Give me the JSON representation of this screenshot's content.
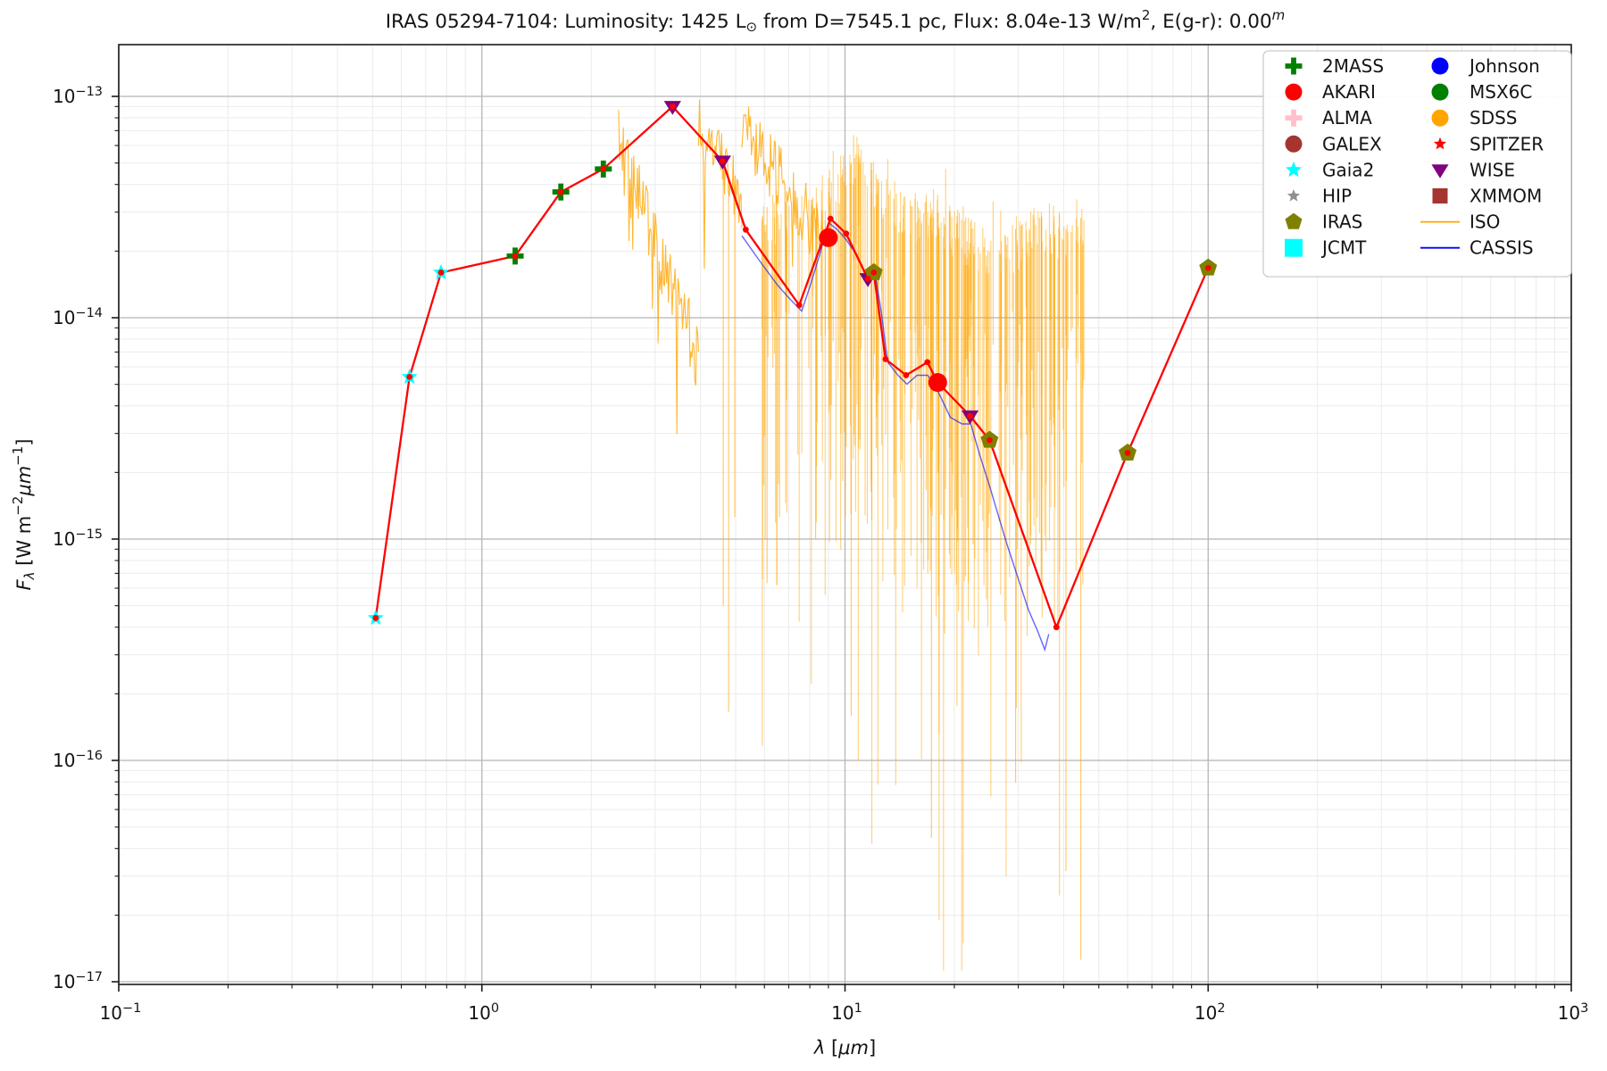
{
  "figure": {
    "title_plain": "IRAS 05294-7104:  Luminosity: 1425 L⊙ from D=7545.1 pc, Flux: 8.04e-13 W/m2, E(g-r): 0.00m",
    "title_parts": [
      {
        "t": "IRAS 05294-7104:  Luminosity: 1425 L",
        "s": "n"
      },
      {
        "t": "⊙",
        "s": "sub"
      },
      {
        "t": " from D=7545.1 pc, Flux: 8.04e-13 W/m",
        "s": "n"
      },
      {
        "t": "2",
        "s": "sup"
      },
      {
        "t": ", E(g-r): 0.00",
        "s": "n"
      },
      {
        "t": "m",
        "s": "supi"
      }
    ],
    "xlabel_parts": [
      {
        "t": "λ",
        "s": "i"
      },
      {
        "t": " [",
        "s": "n"
      },
      {
        "t": "μm",
        "s": "i"
      },
      {
        "t": "]",
        "s": "n"
      }
    ],
    "ylabel_parts": [
      {
        "t": "F",
        "s": "i"
      },
      {
        "t": "λ",
        "s": "subi"
      },
      {
        "t": " [W m",
        "s": "n"
      },
      {
        "t": "−2",
        "s": "sup"
      },
      {
        "t": "μm",
        "s": "i"
      },
      {
        "t": "−1",
        "s": "sup"
      },
      {
        "t": "]",
        "s": "n"
      }
    ],
    "x_tick_exponents": [
      "−1",
      "0",
      "1",
      "2",
      "3"
    ],
    "y_tick_exponents": [
      "−13",
      "−14",
      "−15",
      "−16",
      "−17"
    ],
    "tick_mantissa": "10"
  },
  "legend": {
    "columns": [
      [
        {
          "label": "2MASS",
          "marker": "plus",
          "color": "#008000"
        },
        {
          "label": "AKARI",
          "marker": "circle",
          "color": "#ff0000"
        },
        {
          "label": "ALMA",
          "marker": "plus",
          "color": "#ffc0cb"
        },
        {
          "label": "GALEX",
          "marker": "circle",
          "color": "#a5352f"
        },
        {
          "label": "Gaia2",
          "marker": "star",
          "color": "#00ffff"
        },
        {
          "label": "HIP",
          "marker": "star-small",
          "color": "#909090"
        },
        {
          "label": "IRAS",
          "marker": "pentagon",
          "color": "#808000"
        },
        {
          "label": "JCMT",
          "marker": "square-big",
          "color": "#00ffff"
        }
      ],
      [
        {
          "label": "Johnson",
          "marker": "circle",
          "color": "#0000ff"
        },
        {
          "label": "MSX6C",
          "marker": "circle",
          "color": "#008000"
        },
        {
          "label": "SDSS",
          "marker": "circle",
          "color": "#ffa500"
        },
        {
          "label": "SPITZER",
          "marker": "star-small",
          "color": "#ff0000"
        },
        {
          "label": "WISE",
          "marker": "triangle-down",
          "color": "#800080"
        },
        {
          "label": "XMMOM",
          "marker": "square",
          "color": "#a5352f"
        },
        {
          "label": "ISO",
          "marker": "line",
          "color": "#ffa500"
        },
        {
          "label": "CASSIS",
          "marker": "line",
          "color": "#0000ff"
        }
      ]
    ]
  },
  "colors": {
    "sed_line": "#ff0000",
    "iso": "#ffa500",
    "cassis": "#0000ff",
    "grid_major": "#b5b5b5",
    "grid_minor": "#ebebeb",
    "spine": "#1a1a1a",
    "text": "#141414",
    "legend_border": "#cccccc"
  },
  "chart_data": {
    "type": "scatter",
    "title": "IRAS 05294-7104:  Luminosity: 1425 L_sun from D=7545.1 pc, Flux: 8.04e-13 W/m^2, E(g-r): 0.00^m",
    "xlabel": "lambda [um]",
    "ylabel": "F_lambda [W m^-2 um^-1]",
    "xscale": "log",
    "yscale": "log",
    "xlim": [
      0.1,
      1000
    ],
    "ylim": [
      9.6e-18,
      1.7e-13
    ],
    "grid": true,
    "legend_position": "upper right",
    "series": [
      {
        "name": "SED combined (red line with vertex dots)",
        "type": "line+dots",
        "color": "#ff0000",
        "points_lambda_um_flux": [
          [
            0.51,
            4.4e-16
          ],
          [
            0.632,
            5.4e-15
          ],
          [
            0.772,
            1.6e-14
          ],
          [
            1.235,
            1.9e-14
          ],
          [
            1.65,
            3.7e-14
          ],
          [
            2.16,
            4.7e-14
          ],
          [
            3.35,
            9e-14
          ],
          [
            4.6,
            5.1e-14
          ],
          [
            5.33,
            2.5e-14
          ],
          [
            7.48,
            1.14e-14
          ],
          [
            9.12,
            2.8e-14
          ],
          [
            10.07,
            2.4e-14
          ],
          [
            11.56,
            1.5e-14
          ],
          [
            12.0,
            1.6e-14
          ],
          [
            12.93,
            6.5e-15
          ],
          [
            14.73,
            5.5e-15
          ],
          [
            16.86,
            6.3e-15
          ],
          [
            18.0,
            5.1e-15
          ],
          [
            22.1,
            3.6e-15
          ],
          [
            25.0,
            2.8e-15
          ],
          [
            38.2,
            4e-16
          ],
          [
            60.0,
            2.45e-15
          ],
          [
            100.0,
            1.68e-14
          ]
        ]
      },
      {
        "name": "Gaia2",
        "marker": "star",
        "color": "#00ffff",
        "points_lambda_um_flux": [
          [
            0.51,
            4.4e-16
          ],
          [
            0.632,
            5.4e-15
          ],
          [
            0.772,
            1.6e-14
          ]
        ]
      },
      {
        "name": "2MASS",
        "marker": "plus",
        "color": "#008000",
        "points_lambda_um_flux": [
          [
            1.235,
            1.9e-14
          ],
          [
            1.65,
            3.7e-14
          ],
          [
            2.16,
            4.7e-14
          ]
        ]
      },
      {
        "name": "WISE",
        "marker": "triangle-down",
        "color": "#800080",
        "points_lambda_um_flux": [
          [
            3.35,
            9e-14
          ],
          [
            4.6,
            5.1e-14
          ],
          [
            11.56,
            1.5e-14
          ],
          [
            22.1,
            3.6e-15
          ]
        ]
      },
      {
        "name": "AKARI",
        "marker": "circle",
        "color": "#ff0000",
        "points_lambda_um_flux": [
          [
            9.0,
            2.3e-14
          ],
          [
            18.0,
            5.1e-15
          ]
        ]
      },
      {
        "name": "IRAS",
        "marker": "pentagon",
        "color": "#808000",
        "points_lambda_um_flux": [
          [
            12.0,
            1.6e-14
          ],
          [
            25.0,
            2.8e-15
          ],
          [
            60.0,
            2.45e-15
          ],
          [
            100.0,
            1.68e-14
          ]
        ]
      },
      {
        "name": "ISO (noisy spectrum, approximated)",
        "type": "noisy-spectrum",
        "color": "#ffa500",
        "bands_l0_l1_logF0_logF1_steps_amp_dipP_dipAmp": [
          [
            2.38,
            3.95,
            -13.06,
            -14.0,
            85,
            0.35,
            0.06,
            0.5
          ],
          [
            3.95,
            5.2,
            -12.97,
            -13.33,
            45,
            0.28,
            0.05,
            0.8
          ],
          [
            5.2,
            8.7,
            -12.98,
            -13.5,
            85,
            0.3,
            0.06,
            0.7
          ]
        ],
        "explicit_spikes_lambda_logFtop_logFbot": [
          [
            4.62,
            -13.3,
            -15.3
          ],
          [
            4.78,
            -13.35,
            -15.78
          ],
          [
            4.97,
            -13.4,
            -14.9
          ],
          [
            6.1,
            -13.5,
            -15.2
          ],
          [
            6.6,
            -13.6,
            -14.9
          ],
          [
            8.3,
            -13.55,
            -15.0
          ],
          [
            17.3,
            -13.6,
            -16.35
          ],
          [
            40.6,
            -13.6,
            -16.5
          ],
          [
            44.6,
            -13.55,
            -16.9
          ],
          [
            10.4,
            -13.3,
            -15.8
          ],
          [
            29.5,
            -13.6,
            -16.1
          ]
        ],
        "spike_forest": {
          "lambda_range": [
            5.8,
            45.5
          ],
          "n_strokes": 300,
          "top_envelope_lambda_logF": [
            [
              5.8,
              -13.45
            ],
            [
              8.7,
              -13.35
            ],
            [
              9.6,
              -13.25
            ],
            [
              11.0,
              -13.14
            ],
            [
              12.5,
              -13.3
            ],
            [
              14.0,
              -13.38
            ],
            [
              16.0,
              -13.45
            ],
            [
              18.0,
              -13.42
            ],
            [
              20.0,
              -13.5
            ],
            [
              23.0,
              -13.55
            ],
            [
              26.0,
              -13.6
            ],
            [
              29.0,
              -13.55
            ],
            [
              32.0,
              -13.5
            ],
            [
              36.0,
              -13.45
            ],
            [
              40.0,
              -13.5
            ],
            [
              45.5,
              -13.55
            ]
          ]
        }
      },
      {
        "name": "CASSIS (Spitzer IRS spectrum, approximated)",
        "type": "line",
        "color": "#0000ff",
        "points_lambda_um_logF": [
          [
            5.2,
            -13.63
          ],
          [
            5.8,
            -13.74
          ],
          [
            6.5,
            -13.85
          ],
          [
            7.0,
            -13.91
          ],
          [
            7.6,
            -13.97
          ],
          [
            8.0,
            -13.86
          ],
          [
            8.5,
            -13.72
          ],
          [
            9.0,
            -13.57
          ],
          [
            9.5,
            -13.6
          ],
          [
            10.1,
            -13.65
          ],
          [
            10.8,
            -13.72
          ],
          [
            11.6,
            -13.84
          ],
          [
            12.1,
            -13.8
          ],
          [
            12.6,
            -13.98
          ],
          [
            13.1,
            -14.2
          ],
          [
            14.0,
            -14.26
          ],
          [
            14.8,
            -14.3
          ],
          [
            15.8,
            -14.26
          ],
          [
            16.9,
            -14.26
          ],
          [
            18.0,
            -14.33
          ],
          [
            19.5,
            -14.45
          ],
          [
            21.0,
            -14.48
          ],
          [
            22.2,
            -14.48
          ],
          [
            23.5,
            -14.62
          ],
          [
            25.0,
            -14.76
          ],
          [
            26.5,
            -14.9
          ],
          [
            28.0,
            -15.03
          ],
          [
            30.0,
            -15.18
          ],
          [
            32.0,
            -15.32
          ],
          [
            34.0,
            -15.42
          ],
          [
            35.5,
            -15.5
          ],
          [
            36.4,
            -15.43
          ]
        ]
      }
    ]
  }
}
